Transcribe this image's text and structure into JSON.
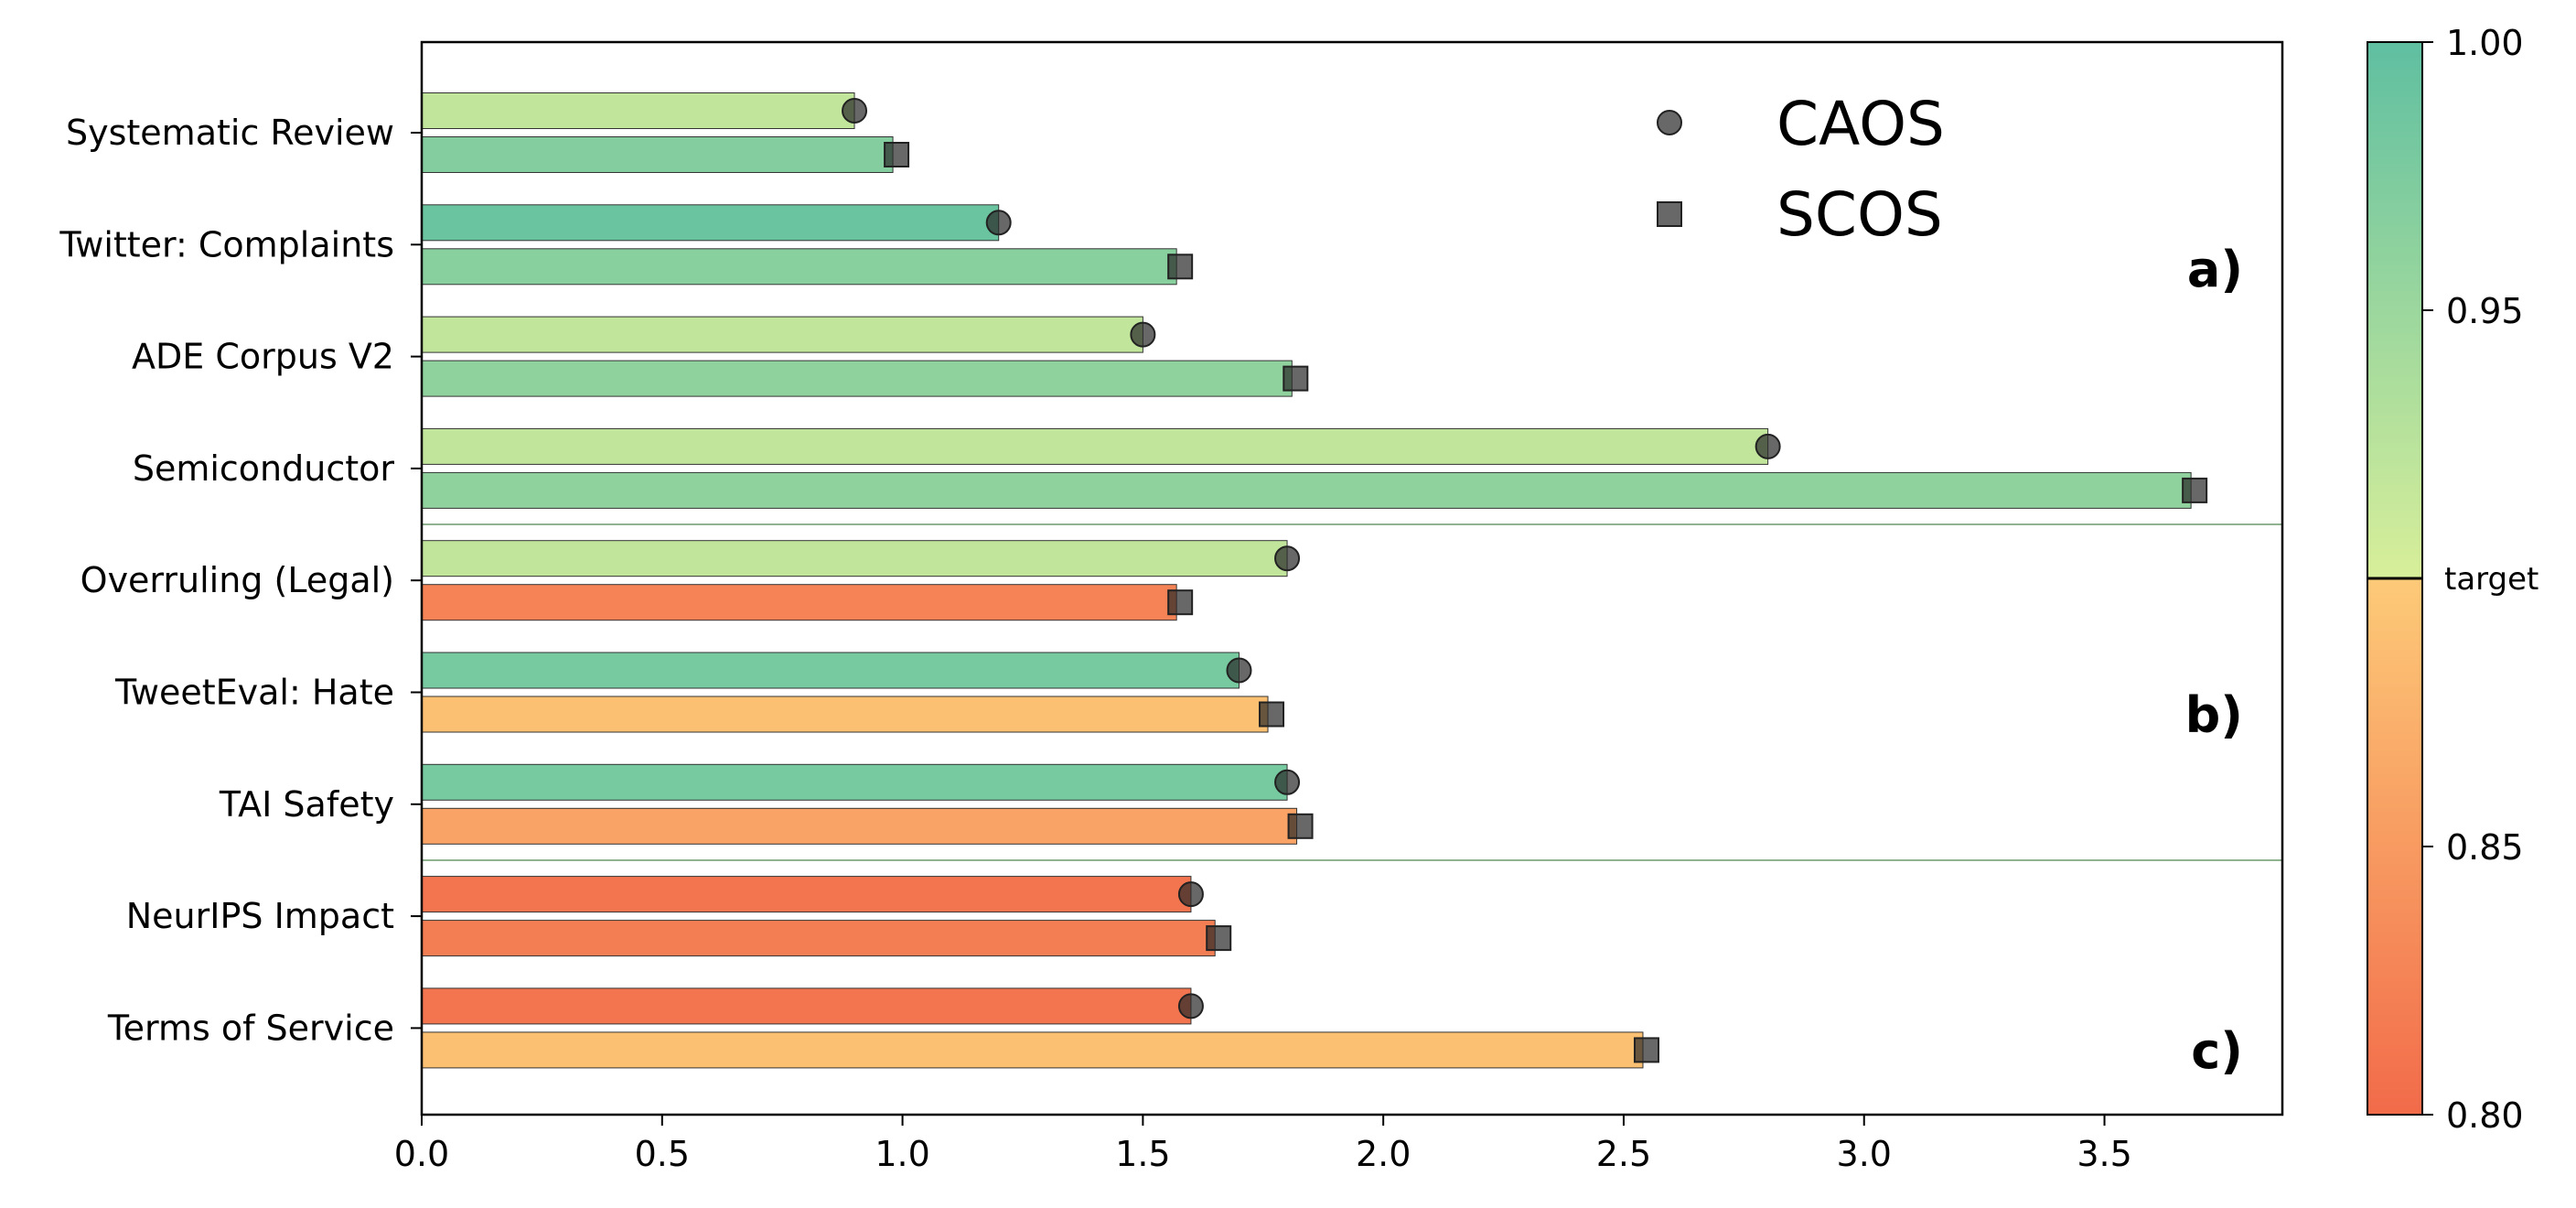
{
  "chart_data": {
    "type": "bar",
    "orientation": "horizontal",
    "categories": [
      "Systematic Review",
      "Twitter: Complaints",
      "ADE Corpus V2",
      "Semiconductor",
      "Overruling (Legal)",
      "TweetEval: Hate",
      "TAI Safety",
      "NeurIPS Impact",
      "Terms of Service"
    ],
    "series": [
      {
        "name": "CAOS",
        "marker": "circle",
        "values": [
          0.9,
          1.2,
          1.5,
          2.8,
          1.8,
          1.7,
          1.8,
          1.6,
          1.6
        ],
        "color_values": [
          0.92,
          0.99,
          0.92,
          0.92,
          0.92,
          0.98,
          0.98,
          0.81,
          0.81
        ]
      },
      {
        "name": "SCOS",
        "marker": "square",
        "values": [
          0.98,
          1.57,
          1.81,
          3.68,
          1.57,
          1.76,
          1.82,
          1.65,
          2.54
        ],
        "color_values": [
          0.97,
          0.965,
          0.96,
          0.96,
          0.825,
          0.89,
          0.86,
          0.82,
          0.89
        ]
      }
    ],
    "xlim": [
      0,
      3.87
    ],
    "xticks": [
      "0.0",
      "0.5",
      "1.0",
      "1.5",
      "2.0",
      "2.5",
      "3.0",
      "3.5"
    ],
    "xlabel": "",
    "ylabel": "",
    "title": "",
    "legend": {
      "placement": "top-center",
      "entries": [
        "CAOS",
        "SCOS"
      ]
    },
    "panels": [
      {
        "label": "a)",
        "categories": [
          0,
          1,
          2,
          3
        ]
      },
      {
        "label": "b)",
        "categories": [
          4,
          5,
          6
        ]
      },
      {
        "label": "c)",
        "categories": [
          7,
          8
        ]
      }
    ],
    "colorbar": {
      "range": [
        0.8,
        1.0
      ],
      "ticks": [
        "1.00",
        "0.95",
        "0.85",
        "0.80"
      ],
      "target_label": "target",
      "target_value": 0.9,
      "colors": {
        "low": "#f26b4a",
        "mid_low": "#fdca78",
        "mid_high": "#d8ef9a",
        "high": "#5fbfa1"
      }
    },
    "grid": false
  }
}
